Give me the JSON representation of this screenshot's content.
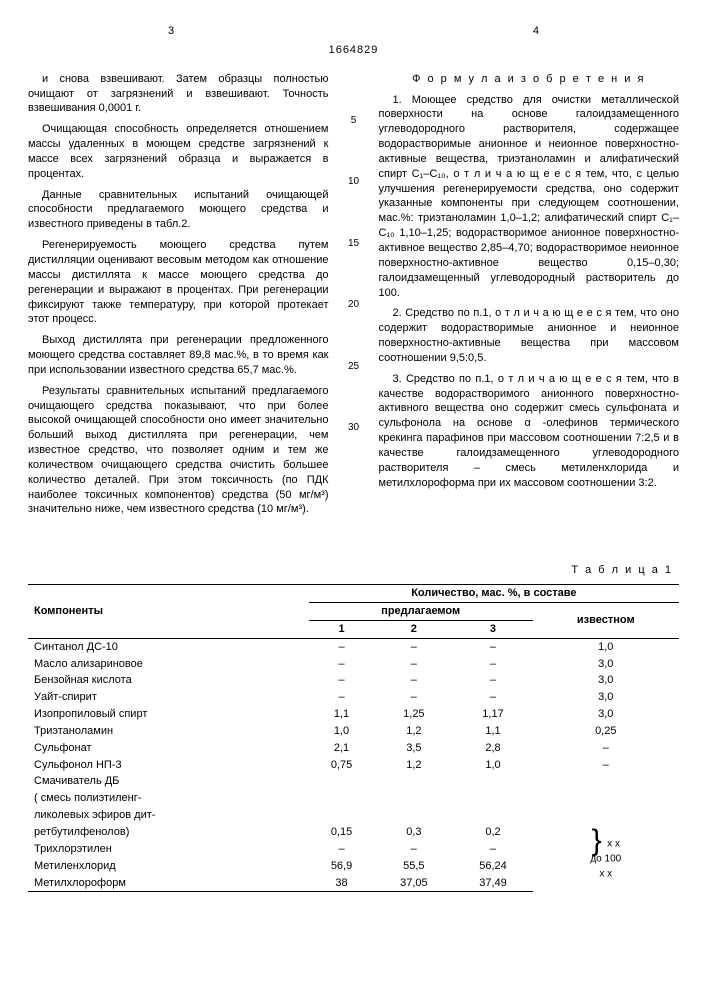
{
  "header": {
    "page_left": "3",
    "page_right": "4",
    "doc_number": "1664829"
  },
  "left_column": {
    "p1": "и снова взвешивают. Затем образцы полностью очищают от загрязнений и взвешивают. Точность взвешивания 0,0001 г.",
    "p2": "Очищающая способность определяется отношением массы удаленных в моющем средстве загрязнений к массе всех загрязнений образца и выражается в процентах.",
    "p3": "Данные сравнительных испытаний очищающей способности предлагаемого моющего средства и известного приведены в табл.2.",
    "p4": "Регенерируемость моющего средства путем дистилляции оценивают весовым методом как отношение массы дистиллята к массе моющего средства до регенерации и выражают в процентах. При регенерации фиксируют также температуру, при которой протекает этот процесс.",
    "p5": "Выход дистиллята при регенерации предложенного моющего средства составляет 89,8 мас.%, в то время как при использовании известного средства 65,7 мас.%.",
    "p6": "Результаты сравнительных испытаний предлагаемого очищающего средства показывают, что при более высокой очищающей способности оно имеет значительно больший выход дистиллята при регенерации, чем известное средство, что позволяет одним и тем же количеством очищающего средства очистить большее количество деталей. При этом токсичность (по ПДК наиболее токсичных компонентов) средства (50 мг/м³) значительно ниже, чем известного средства (10 мг/м³)."
  },
  "right_column": {
    "title": "Ф о р м у л а  и з о б р е т е н и я",
    "p1": "1. Моющее средство для очистки металлической поверхности на основе галоидзамещенного углеводородного растворителя, содержащее водорастворимые анионное и неионное поверхностно-активные вещества, триэтаноламин и алифатический спирт C₁–C₁₀, о т л и ч а ю щ е е с я тем, что, с целью улучшения регенерируемости средства, оно содержит указанные компоненты при следующем соотношении, мас.%: триэтаноламин 1,0–1,2; алифатический спирт C₁–C₁₀ 1,10–1,25; водорастворимое анионное поверхностно-активное вещество 2,85–4,70; водорастворимое неионное поверхностно-активное вещество 0,15–0,30; галоидзамещенный углеводородный растворитель до 100.",
    "p2": "2. Средство по п.1, о т л и ч а ю щ е е с я тем, что оно содержит водорастворимые анионное и неионное поверхностно-активные вещества при массовом соотношении 9,5:0,5.",
    "p3": "3. Средство по п.1, о т л и ч а ю щ е е с я тем, что в качестве водорастворимого анионного поверхностно-активного вещества оно содержит смесь сульфоната и сульфонола на основе α -олефинов термического крекинга парафинов при массовом соотношении 7:2,5 и в качестве галоидзамещенного углеводородного растворителя – смесь метиленхлорида и метилхлороформа при их массовом соотношении 3:2."
  },
  "line_numbers": {
    "n5": "5",
    "n10": "10",
    "n15": "15",
    "n20": "20",
    "n25": "25",
    "n30": "30"
  },
  "table": {
    "caption": "Т а б л и ц а 1",
    "head": {
      "components": "Компоненты",
      "amount_header": "Количество, мас. %, в составе",
      "proposed": "предлагаемом",
      "known": "известном",
      "c1": "1",
      "c2": "2",
      "c3": "3"
    },
    "rows": [
      {
        "name": "Синтанол ДС-10",
        "v1": "–",
        "v2": "–",
        "v3": "–",
        "known": "1,0"
      },
      {
        "name": "Масло ализариновое",
        "v1": "–",
        "v2": "–",
        "v3": "–",
        "known": "3,0"
      },
      {
        "name": "Бензойная кислота",
        "v1": "–",
        "v2": "–",
        "v3": "–",
        "known": "3,0"
      },
      {
        "name": "Уайт-спирит",
        "v1": "–",
        "v2": "–",
        "v3": "–",
        "known": "3,0"
      },
      {
        "name": "Изопропиловый спирт",
        "v1": "1,1",
        "v2": "1,25",
        "v3": "1,17",
        "known": "3,0"
      },
      {
        "name": "Триэтаноламин",
        "v1": "1,0",
        "v2": "1,2",
        "v3": "1,1",
        "known": "0,25"
      },
      {
        "name": "Сульфонат",
        "v1": "2,1",
        "v2": "3,5",
        "v3": "2,8",
        "known": "–"
      },
      {
        "name": "Сульфонол НП-3",
        "v1": "0,75",
        "v2": "1,2",
        "v3": "1,0",
        "known": "–"
      }
    ],
    "multi_row": {
      "name_l1": "Смачиватель ДБ",
      "name_l2": "( смесь полиэтиленг-",
      "name_l3": "ликолевых эфиров дит-",
      "name_l4": "ретбутилфенолов)",
      "v1": "0,15",
      "v2": "0,3",
      "v3": "0,2"
    },
    "brace_rows": [
      {
        "name": "Трихлорэтилен",
        "v1": "–",
        "v2": "–",
        "v3": "–"
      },
      {
        "name": "Метиленхлорид",
        "v1": "56,9",
        "v2": "55,5",
        "v3": "56,24"
      },
      {
        "name": "Метилхлороформ",
        "v1": "38",
        "v2": "37,05",
        "v3": "37,49"
      }
    ],
    "brace_text_top": "x x",
    "brace_text_mid": "до 100",
    "brace_text_bot": "x x"
  }
}
